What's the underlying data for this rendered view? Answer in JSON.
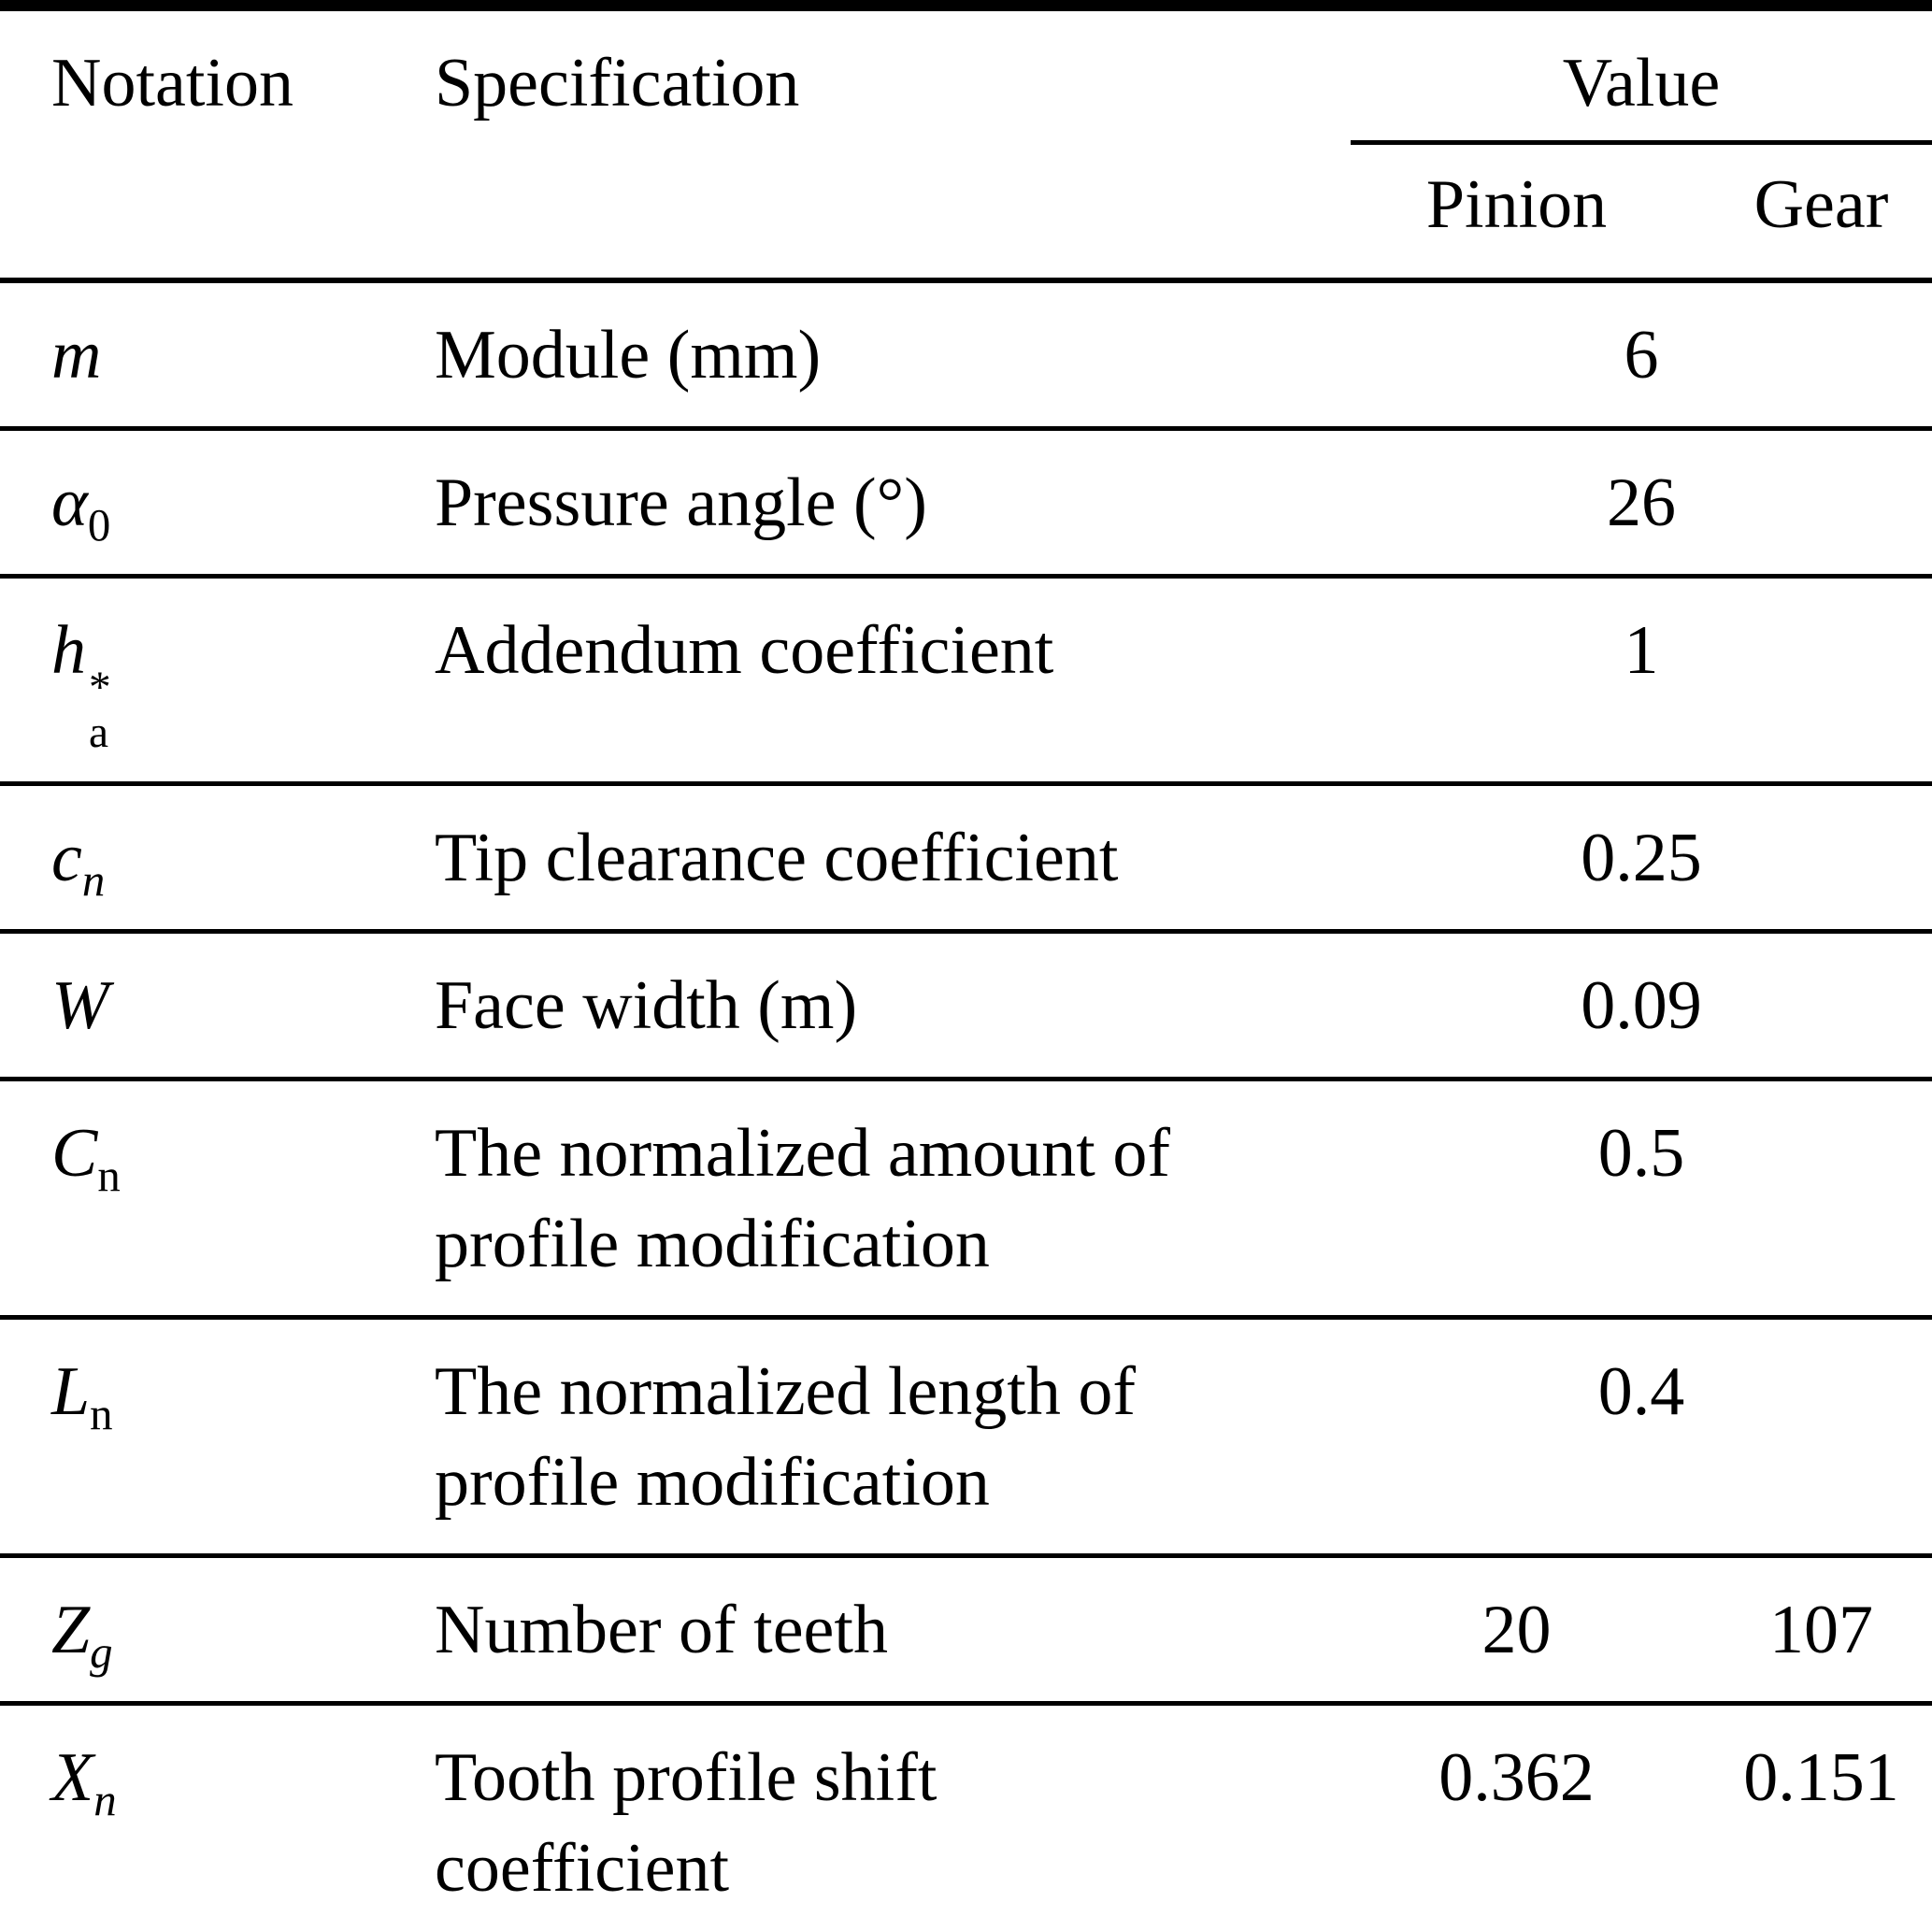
{
  "colors": {
    "text": "#000000",
    "background": "#ffffff",
    "rule": "#000000"
  },
  "table": {
    "header": {
      "notation": "Notation",
      "specification": "Specification",
      "value": "Value",
      "pinion": "Pinion",
      "gear": "Gear"
    },
    "rows": [
      {
        "notation": {
          "base": "m",
          "sup": "",
          "sub": ""
        },
        "spec_line1": "Module (mm)",
        "spec_line2": "",
        "value": "6",
        "pinion": "",
        "gear": ""
      },
      {
        "notation": {
          "base": "α",
          "sup": "",
          "sub": "0"
        },
        "spec_line1": "Pressure angle (°)",
        "spec_line2": "",
        "value": "26",
        "pinion": "",
        "gear": ""
      },
      {
        "notation": {
          "base": "h",
          "sup": "*",
          "sub": "a"
        },
        "spec_line1": "Addendum coefficient",
        "spec_line2": "",
        "value": "1",
        "pinion": "",
        "gear": ""
      },
      {
        "notation": {
          "base": "c",
          "sup": "",
          "sub": "n"
        },
        "spec_line1": "Tip clearance coefficient",
        "spec_line2": "",
        "value": "0.25",
        "pinion": "",
        "gear": ""
      },
      {
        "notation": {
          "base": "W",
          "sup": "",
          "sub": ""
        },
        "spec_line1": "Face width (m)",
        "spec_line2": "",
        "value": "0.09",
        "pinion": "",
        "gear": ""
      },
      {
        "notation": {
          "base": "C",
          "sup": "",
          "sub": "n"
        },
        "spec_line1": "The normalized amount of",
        "spec_line2": "profile modification",
        "value": "0.5",
        "pinion": "",
        "gear": ""
      },
      {
        "notation": {
          "base": "L",
          "sup": "",
          "sub": "n"
        },
        "spec_line1": "The normalized length of",
        "spec_line2": "profile modification",
        "value": "0.4",
        "pinion": "",
        "gear": ""
      },
      {
        "notation": {
          "base": "Z",
          "sup": "",
          "sub": "g"
        },
        "spec_line1": "Number of teeth",
        "spec_line2": "",
        "value": "",
        "pinion": "20",
        "gear": "107"
      },
      {
        "notation": {
          "base": "X",
          "sup": "",
          "sub": "n"
        },
        "spec_line1": "Tooth profile shift",
        "spec_line2": "coefficient",
        "value": "",
        "pinion": "0.362",
        "gear": "0.151"
      }
    ]
  }
}
